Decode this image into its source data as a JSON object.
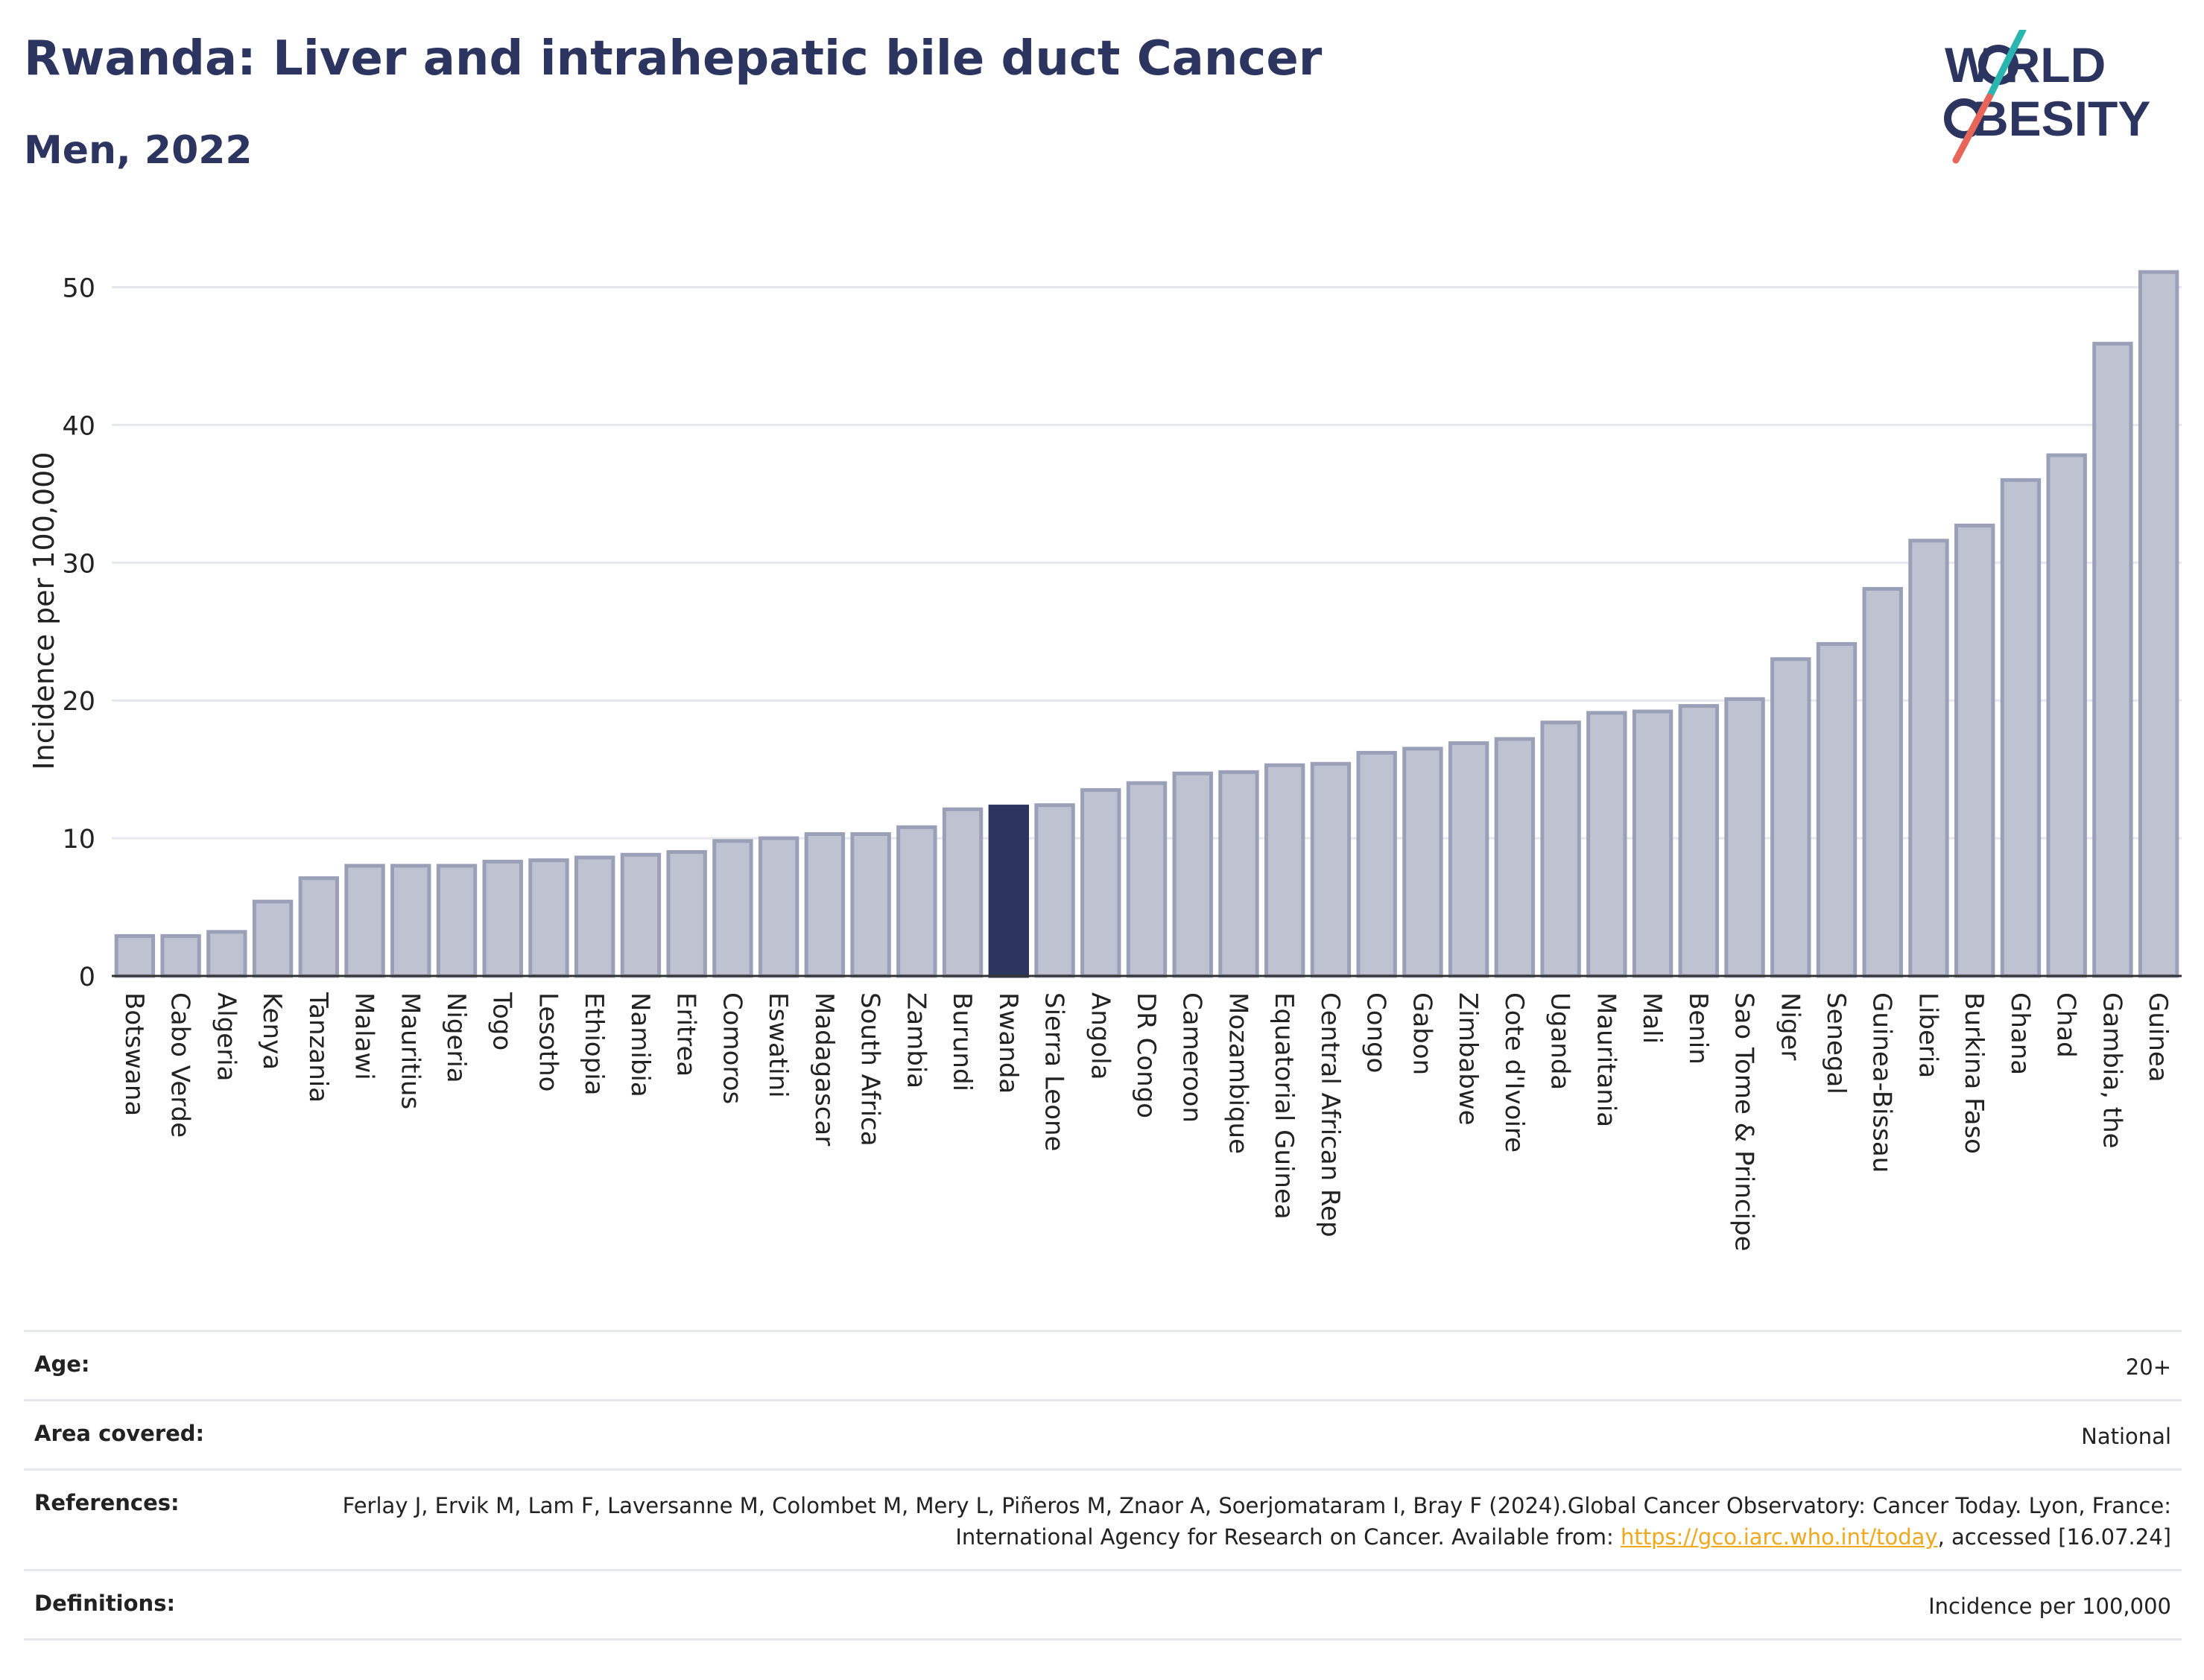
{
  "header": {
    "title": "Rwanda: Liver and intrahepatic bile duct Cancer",
    "subtitle": "Men, 2022"
  },
  "logo": {
    "line1": "W RLD",
    "line2": "BESITY",
    "colors": {
      "text": "#2b3560",
      "slash_top": "#2bb5b0",
      "slash_bottom": "#e8655a"
    }
  },
  "colors": {
    "bar": "#bfc3d1",
    "bar_border": "#9aa0b8",
    "highlight": "#2b3560",
    "grid": "#e6e8ee",
    "axis": "#333333"
  },
  "chart_data": {
    "type": "bar",
    "ylabel": "Incidence per 100,000",
    "xlabel": "",
    "ylim": [
      0,
      53
    ],
    "yticks": [
      0,
      10,
      20,
      30,
      40,
      50
    ],
    "grid": true,
    "highlight": "Rwanda",
    "categories": [
      "Botswana",
      "Cabo Verde",
      "Algeria",
      "Kenya",
      "Tanzania",
      "Malawi",
      "Mauritius",
      "Nigeria",
      "Togo",
      "Lesotho",
      "Ethiopia",
      "Namibia",
      "Eritrea",
      "Comoros",
      "Eswatini",
      "Madagascar",
      "South Africa",
      "Zambia",
      "Burundi",
      "Rwanda",
      "Sierra Leone",
      "Angola",
      "DR Congo",
      "Cameroon",
      "Mozambique",
      "Equatorial Guinea",
      "Central African Rep",
      "Congo",
      "Gabon",
      "Zimbabwe",
      "Cote d'Ivoire",
      "Uganda",
      "Mauritania",
      "Mali",
      "Benin",
      "Sao Tome & Principe",
      "Niger",
      "Senegal",
      "Guinea-Bissau",
      "Liberia",
      "Burkina Faso",
      "Ghana",
      "Chad",
      "Gambia, the",
      "Guinea"
    ],
    "values": [
      2.9,
      2.9,
      3.2,
      5.4,
      7.1,
      8.0,
      8.0,
      8.0,
      8.3,
      8.4,
      8.6,
      8.8,
      9.0,
      9.8,
      10.0,
      10.3,
      10.3,
      10.8,
      12.1,
      12.3,
      12.4,
      13.5,
      14.0,
      14.7,
      14.8,
      15.3,
      15.4,
      16.2,
      16.5,
      16.9,
      17.2,
      18.4,
      19.1,
      19.2,
      19.6,
      20.1,
      23.0,
      24.1,
      28.1,
      31.6,
      32.7,
      36.0,
      37.8,
      45.9,
      51.1
    ]
  },
  "info": [
    {
      "label": "Age:",
      "value": "20+"
    },
    {
      "label": "Area covered:",
      "value": "National"
    },
    {
      "label": "References:",
      "value": "Ferlay J, Ervik M, Lam F, Laversanne M, Colombet M, Mery L, Piñeros M, Znaor A, Soerjomataram I, Bray F (2024).Global Cancer Observatory: Cancer Today. Lyon, France: International Agency for Research on Cancer. Available from: ",
      "link": "https://gco.iarc.who.int/today",
      "suffix": ", accessed [16.07.24]"
    },
    {
      "label": "Definitions:",
      "value": "Incidence per 100,000"
    }
  ]
}
